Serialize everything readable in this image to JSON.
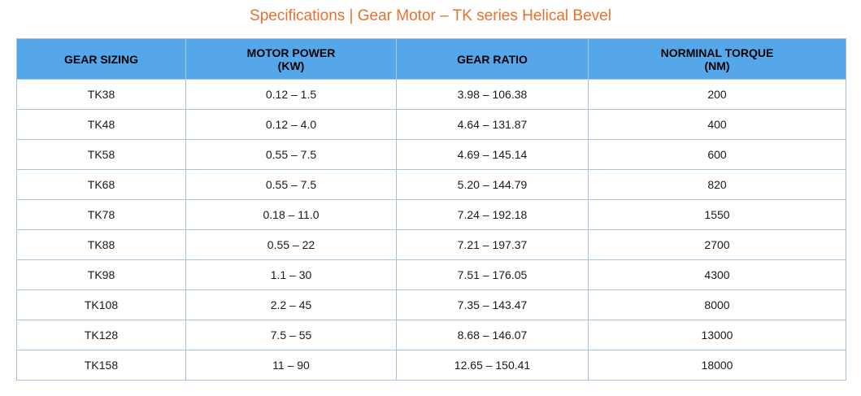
{
  "title": "Specifications | Gear Motor – TK series Helical Bevel",
  "table": {
    "headers": [
      {
        "line1": "GEAR SIZING",
        "line2": ""
      },
      {
        "line1": "MOTOR POWER",
        "line2": "(KW)"
      },
      {
        "line1": "GEAR RATIO",
        "line2": ""
      },
      {
        "line1": "NORMINAL TORQUE",
        "line2": "(NM)"
      }
    ],
    "rows": [
      [
        "TK38",
        "0.12 – 1.5",
        "3.98 – 106.38",
        "200"
      ],
      [
        "TK48",
        "0.12 – 4.0",
        "4.64 – 131.87",
        "400"
      ],
      [
        "TK58",
        "0.55 – 7.5",
        "4.69 – 145.14",
        "600"
      ],
      [
        "TK68",
        "0.55 – 7.5",
        "5.20 – 144.79",
        "820"
      ],
      [
        "TK78",
        "0.18 – 11.0",
        "7.24 – 192.18",
        "1550"
      ],
      [
        "TK88",
        "0.55 – 22",
        "7.21 – 197.37",
        "2700"
      ],
      [
        "TK98",
        "1.1 – 30",
        "7.51 – 176.05",
        "4300"
      ],
      [
        "TK108",
        "2.2 – 45",
        "7.35 – 143.47",
        "8000"
      ],
      [
        "TK128",
        "7.5 – 55",
        "8.68 – 146.07",
        "13000"
      ],
      [
        "TK158",
        "11 – 90",
        "12.65 – 150.41",
        "18000"
      ]
    ]
  },
  "colors": {
    "title": "#e8702a",
    "header_bg": "#55a7ea",
    "border": "#a9c3dc"
  }
}
